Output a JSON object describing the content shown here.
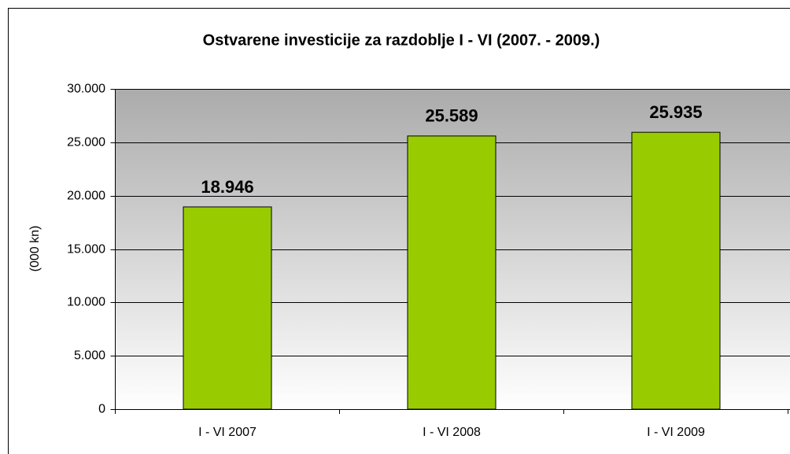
{
  "chart_data": {
    "type": "bar",
    "title": "Ostvarene investicije za razdoblje I - VI (2007. - 2009.)",
    "y_label": "(000 kn)",
    "categories": [
      "I - VI 2007",
      "I - VI 2008",
      "I - VI 2009"
    ],
    "values": [
      18946,
      25589,
      25935
    ],
    "value_labels": [
      "18.946",
      "25.589",
      "25.935"
    ],
    "color": "#99cc00",
    "ylim": [
      0,
      30000
    ],
    "yticks": [
      {
        "value": 0,
        "label": "0"
      },
      {
        "value": 5000,
        "label": "5.000"
      },
      {
        "value": 10000,
        "label": "10.000"
      },
      {
        "value": 15000,
        "label": "15.000"
      },
      {
        "value": 20000,
        "label": "20.000"
      },
      {
        "value": 25000,
        "label": "25.000"
      },
      {
        "value": 30000,
        "label": "30.000"
      }
    ],
    "grid": true
  }
}
